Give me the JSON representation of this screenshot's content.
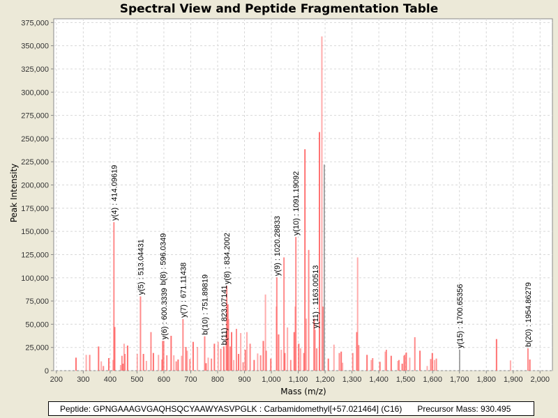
{
  "footer": {
    "peptide": "Peptide: GPNGAAAGVGAQHSQCYAAWYASVPGLK : Carbamidomethyl[+57.021464] (C16)",
    "precursor": "Precursor Mass: 930.495"
  },
  "chart_data": {
    "type": "bar",
    "title": "Spectral View and Peptide Fragmentation Table",
    "xlabel": "Mass (m/z)",
    "ylabel": "Peak Intensity",
    "xlim": [
      190,
      2046
    ],
    "ylim": [
      0,
      379000
    ],
    "grid": true,
    "x_ticks": [
      200,
      300,
      400,
      500,
      600,
      700,
      800,
      900,
      1000,
      1100,
      1200,
      1300,
      1400,
      1500,
      1600,
      1700,
      1800,
      1900,
      2000
    ],
    "x_tick_labels": [
      "200",
      "300",
      "400",
      "500",
      "600",
      "700",
      "800",
      "900",
      "1,000",
      "1,100",
      "1,200",
      "1,300",
      "1,400",
      "1,500",
      "1,600",
      "1,700",
      "1,800",
      "1,900",
      "2,000"
    ],
    "y_ticks": [
      0,
      25000,
      50000,
      75000,
      100000,
      125000,
      150000,
      175000,
      200000,
      225000,
      250000,
      275000,
      300000,
      325000,
      350000,
      375000
    ],
    "y_tick_labels": [
      "0",
      "25,000",
      "50,000",
      "75,000",
      "100,000",
      "125,000",
      "150,000",
      "175,000",
      "200,000",
      "225,000",
      "250,000",
      "275,000",
      "300,000",
      "325,000",
      "350,000",
      "375,000"
    ],
    "colors": {
      "peak": "#ff5a5a",
      "matched_grey": "#8a8a8a",
      "grid": "#d8d8d8"
    },
    "peaks": [
      [
        273,
        14000
      ],
      [
        311,
        17000
      ],
      [
        324,
        17000
      ],
      [
        357,
        26000
      ],
      [
        367,
        10000
      ],
      [
        375,
        5000
      ],
      [
        395,
        13500
      ],
      [
        411,
        11500
      ],
      [
        414.1,
        160000
      ],
      [
        417,
        47000
      ],
      [
        439,
        6000
      ],
      [
        444,
        16000
      ],
      [
        448,
        7500
      ],
      [
        452,
        29000
      ],
      [
        455,
        18000
      ],
      [
        465,
        27000
      ],
      [
        501,
        18000
      ],
      [
        513.0,
        80000
      ],
      [
        524,
        18000
      ],
      [
        535,
        10500
      ],
      [
        552,
        41500
      ],
      [
        561,
        19000
      ],
      [
        580,
        17000
      ],
      [
        593,
        12000
      ],
      [
        596,
        32000
      ],
      [
        600,
        32000
      ],
      [
        611,
        16500
      ],
      [
        627,
        37500
      ],
      [
        637,
        16500
      ],
      [
        646,
        10000
      ],
      [
        653,
        12000
      ],
      [
        666,
        16000
      ],
      [
        671.1,
        55500
      ],
      [
        682,
        25500
      ],
      [
        687,
        21500
      ],
      [
        697,
        12500
      ],
      [
        709,
        31000
      ],
      [
        725,
        25500
      ],
      [
        751.9,
        37000
      ],
      [
        757,
        8000
      ],
      [
        765,
        14000
      ],
      [
        777,
        13000
      ],
      [
        788,
        29000
      ],
      [
        802,
        31000
      ],
      [
        812,
        23500
      ],
      [
        823.1,
        26000
      ],
      [
        832,
        40000
      ],
      [
        834.2,
        91500
      ],
      [
        838,
        71500
      ],
      [
        841,
        55500
      ],
      [
        847,
        26000
      ],
      [
        852,
        41500
      ],
      [
        860,
        11500
      ],
      [
        870,
        45000
      ],
      [
        878,
        18000
      ],
      [
        886,
        40500
      ],
      [
        895,
        9000
      ],
      [
        903,
        22500
      ],
      [
        909,
        41500
      ],
      [
        921,
        29000
      ],
      [
        936,
        11500
      ],
      [
        949,
        18500
      ],
      [
        960,
        16500
      ],
      [
        970,
        32000
      ],
      [
        978,
        82000
      ],
      [
        981,
        21500
      ],
      [
        998,
        13000
      ],
      [
        1019,
        69000
      ],
      [
        1020.3,
        100500
      ],
      [
        1027,
        39000
      ],
      [
        1037,
        22500
      ],
      [
        1047,
        122000
      ],
      [
        1050,
        19000
      ],
      [
        1060,
        46500
      ],
      [
        1072,
        11500
      ],
      [
        1085,
        41500
      ],
      [
        1089,
        69000
      ],
      [
        1091.2,
        144000
      ],
      [
        1102,
        29000
      ],
      [
        1109,
        24000
      ],
      [
        1121,
        19000
      ],
      [
        1125,
        238500
      ],
      [
        1130,
        56000
      ],
      [
        1139,
        130000
      ],
      [
        1159,
        56000
      ],
      [
        1163.0,
        44000
      ],
      [
        1169,
        24000
      ],
      [
        1179,
        257000
      ],
      [
        1188,
        360000
      ],
      [
        1192,
        69000
      ],
      [
        1212,
        13000
      ],
      [
        1233,
        28000
      ],
      [
        1253,
        19000
      ],
      [
        1260,
        20500
      ],
      [
        1265,
        8500
      ],
      [
        1303,
        19000
      ],
      [
        1318,
        41500
      ],
      [
        1321,
        122000
      ],
      [
        1325,
        27500
      ],
      [
        1356,
        17000
      ],
      [
        1372,
        11500
      ],
      [
        1377,
        13500
      ],
      [
        1404,
        9500
      ],
      [
        1424,
        20500
      ],
      [
        1428,
        22500
      ],
      [
        1446,
        16000
      ],
      [
        1471,
        10500
      ],
      [
        1475,
        11500
      ],
      [
        1487,
        7500
      ],
      [
        1493,
        16000
      ],
      [
        1496,
        17000
      ],
      [
        1502,
        19500
      ],
      [
        1515,
        14000
      ],
      [
        1534,
        36000
      ],
      [
        1553,
        21500
      ],
      [
        1580,
        5000
      ],
      [
        1593,
        12500
      ],
      [
        1599,
        19000
      ],
      [
        1607,
        11500
      ],
      [
        1614,
        13000
      ],
      [
        1838,
        34000
      ],
      [
        1890,
        11000
      ],
      [
        1954.9,
        24000
      ],
      [
        1962,
        12000
      ]
    ],
    "grey_peaks": [
      [
        1197,
        222000
      ],
      [
        1700.65,
        22500
      ]
    ],
    "annotations": [
      {
        "label": "y(4) : 414.09619",
        "mz": 414.1,
        "intensity": 160000
      },
      {
        "label": "y(5) : 513.04431",
        "mz": 513.0,
        "intensity": 80000
      },
      {
        "label": "b(8) : 596.0349",
        "mz": 596,
        "intensity": 32000
      },
      {
        "label": "y(6) : 600.3339",
        "mz": 600,
        "intensity": 32000
      },
      {
        "label": "y(7) : 671.11438",
        "mz": 671.1,
        "intensity": 55500
      },
      {
        "label": "b(10) : 751.89819",
        "mz": 751.9,
        "intensity": 37000
      },
      {
        "label": "b(11) : 823.07141",
        "mz": 823.1,
        "intensity": 26000
      },
      {
        "label": "y(8) : 834.2002",
        "mz": 834.2,
        "intensity": 91500
      },
      {
        "label": "y(9) : 1020.28833",
        "mz": 1020.3,
        "intensity": 100500
      },
      {
        "label": "y(10) : 1091.19092",
        "mz": 1091.2,
        "intensity": 144000
      },
      {
        "label": "y(11) : 1163.00513",
        "mz": 1163.0,
        "intensity": 44000
      },
      {
        "label": "y(15) : 1700.65356",
        "mz": 1700.65,
        "intensity": 22500
      },
      {
        "label": "b(20) : 1954.86279",
        "mz": 1954.9,
        "intensity": 24000
      }
    ]
  }
}
